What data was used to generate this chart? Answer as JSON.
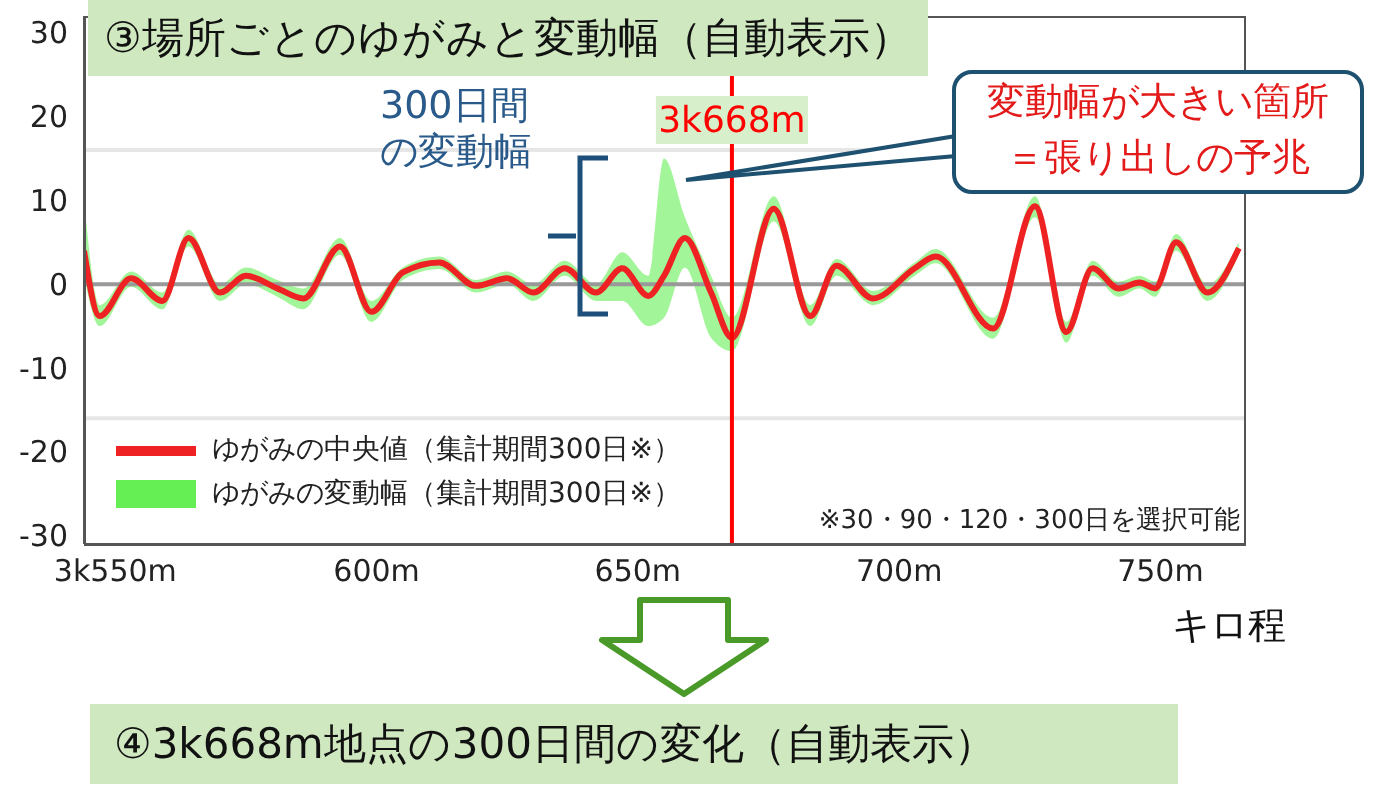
{
  "chart_data": {
    "type": "line",
    "title": "③場所ごとのゆがみと変動幅（自動表示）",
    "xlabel": "キロ程",
    "x": [
      544,
      547,
      553,
      559,
      564,
      570,
      575,
      581,
      586,
      593,
      599,
      605,
      612,
      619,
      625,
      630,
      636,
      642,
      647,
      652,
      655,
      659,
      664,
      668,
      676,
      683,
      688,
      695,
      703,
      707,
      718,
      726,
      732,
      737,
      742,
      746,
      749,
      753,
      759,
      765
    ],
    "xlim": [
      544,
      766
    ],
    "xticks": [
      {
        "value": 550,
        "label": "3k550m"
      },
      {
        "value": 600,
        "label": "600m"
      },
      {
        "value": 650,
        "label": "650m"
      },
      {
        "value": 700,
        "label": "700m"
      },
      {
        "value": 750,
        "label": "750m"
      }
    ],
    "ylim": [
      -31,
      32
    ],
    "yticks": [
      -30,
      -20,
      -10,
      0,
      10,
      20,
      30
    ],
    "series": [
      {
        "name": "ゆがみの中央値（集計期間300日※）",
        "color": "#ee2222",
        "values": [
          4,
          -3.8,
          0.7,
          -2,
          5.5,
          -1,
          1,
          -0.5,
          -1.7,
          4.5,
          -3.3,
          1.4,
          2.6,
          -0.2,
          0.7,
          -1,
          1.9,
          -1,
          1.9,
          -1.4,
          1,
          5.5,
          -1,
          -6.4,
          9,
          -3.8,
          2.2,
          -1.7,
          1.9,
          3.3,
          -5.3,
          9.3,
          -5.7,
          1.9,
          -0.5,
          0.2,
          -0.5,
          5,
          -1,
          4.3
        ],
        "lower": [
          1,
          -5,
          -0.3,
          -3,
          4.5,
          -2,
          0,
          -1.5,
          -3,
          3.5,
          -4.5,
          0.5,
          1.8,
          -1,
          0,
          -2,
          1,
          -2,
          -2,
          -5,
          -4,
          2,
          -6.4,
          -8,
          7.5,
          -5,
          1,
          -2.5,
          1,
          2.5,
          -6.5,
          8,
          -7,
          1,
          -1.5,
          -0.5,
          -1.5,
          4,
          -2,
          3.5
        ],
        "upper": [
          10,
          -2.5,
          1.5,
          -1,
          6.5,
          0,
          2,
          0.5,
          -0.5,
          5.5,
          -2,
          2,
          3.3,
          0.5,
          1.5,
          0,
          2.8,
          0,
          3.8,
          1,
          15,
          8,
          1,
          -4,
          10.5,
          -2.5,
          3,
          -0.8,
          2.6,
          4.2,
          -4,
          10.5,
          -4.5,
          2.8,
          0.3,
          1,
          0.3,
          6,
          0,
          5
        ]
      }
    ],
    "marker": "none",
    "legend": "bottom left",
    "ref_lines": [
      {
        "axis": "y",
        "value": 0,
        "color": "#999999"
      },
      {
        "axis": "y",
        "value": 16,
        "color": "#e6e6e6"
      },
      {
        "axis": "y",
        "value": -16,
        "color": "#e6e6e6"
      },
      {
        "axis": "x",
        "value": 668,
        "label": "3k668m",
        "color": "#ff0000"
      }
    ],
    "annotations": [
      "300日間の変動幅",
      "変動幅が大きい箇所＝張り出しの予兆",
      "※30・90・120・300日を選択可能",
      "④3k668m地点の300日間の変化（自動表示）",
      "ゆがみの変動幅（集計期間300日※）"
    ]
  }
}
